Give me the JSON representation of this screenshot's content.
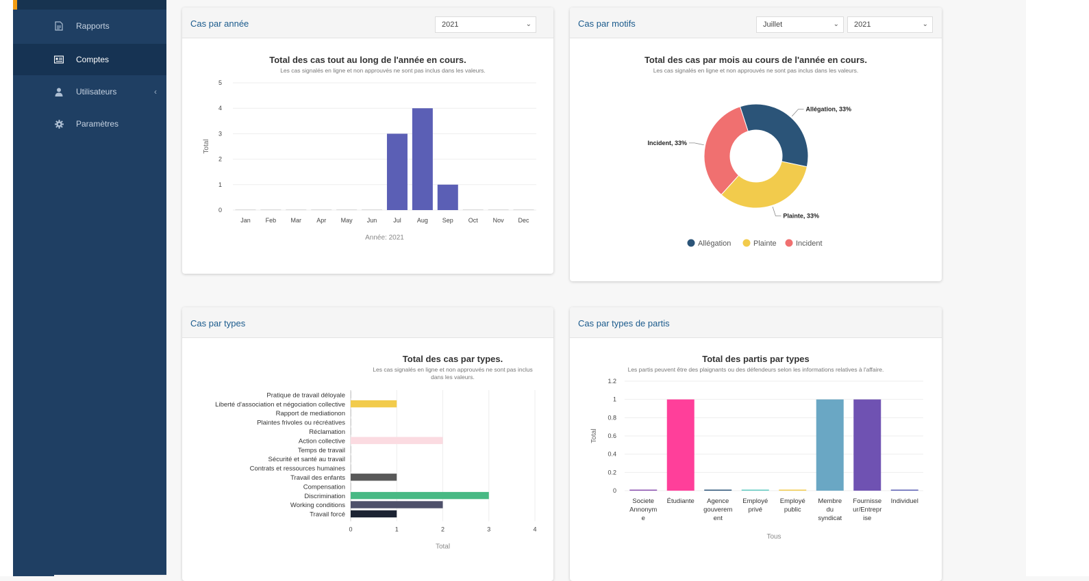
{
  "sidebar": {
    "items": [
      {
        "label": "Rapports",
        "icon": "file-icon"
      },
      {
        "label": "Comptes",
        "icon": "id-card-icon"
      },
      {
        "label": "Utilisateurs",
        "icon": "user-icon"
      },
      {
        "label": "Paramètres",
        "icon": "gear-icon"
      }
    ],
    "accent_color": "#f39c12"
  },
  "panels": {
    "annee": {
      "title": "Cas par année",
      "year_select": "2021",
      "chart_title": "Total des cas tout au long de l'année en cours.",
      "chart_subtitle": "Les cas signalés en ligne et non approuvés ne sont pas inclus dans les valeurs."
    },
    "motifs": {
      "title": "Cas par motifs",
      "month_select": "Juillet",
      "year_select": "2021",
      "chart_title": "Total des cas par mois au cours de l'année en cours.",
      "chart_subtitle": "Les cas signalés en ligne et non approuvés ne sont pas inclus dans les valeurs."
    },
    "types": {
      "title": "Cas par types",
      "chart_title": "Total des cas par types.",
      "chart_subtitle_1": "Les cas signalés en ligne et non approuvés ne sont pas inclus",
      "chart_subtitle_2": "dans les valeurs."
    },
    "partis": {
      "title": "Cas par types de partis",
      "chart_title": "Total des partis par types",
      "chart_subtitle": "Les partis peuvent être des plaignants ou des défendeurs selon les informations relatives à l'affaire."
    }
  },
  "chart_data": [
    {
      "type": "bar",
      "categories": [
        "Jan",
        "Feb",
        "Mar",
        "Apr",
        "May",
        "Jun",
        "Jul",
        "Aug",
        "Sep",
        "Oct",
        "Nov",
        "Dec"
      ],
      "values": [
        0,
        0,
        0,
        0,
        0,
        0,
        3,
        4,
        1,
        0,
        0,
        0
      ],
      "xlabel": "Année: 2021",
      "ylabel": "Total",
      "ylim": [
        0,
        5
      ],
      "yticks": [
        0,
        1,
        2,
        3,
        4,
        5
      ],
      "color": "#5b5fb5"
    },
    {
      "type": "pie",
      "labels": [
        "Allégation",
        "Plainte",
        "Incident"
      ],
      "values": [
        33,
        33,
        33
      ],
      "data_labels": [
        "Allégation, 33%",
        "Plainte, 33%",
        "Incident, 33%"
      ],
      "colors": [
        "#2b5478",
        "#f2cb4c",
        "#f07070"
      ],
      "legend": "bottom"
    },
    {
      "type": "bar",
      "orientation": "horizontal",
      "categories": [
        "Pratique de travail déloyale",
        "Liberté d'association et négociation collective",
        "Rapport de mediationon",
        "Plaintes frivoles ou récréatives",
        "Réclamation",
        "Action collective",
        "Temps de travail",
        "Sécurité et santé au travail",
        "Contrats et ressources humaines",
        "Travail des enfants",
        "Compensation",
        "Discrimination",
        "Working conditions",
        "Travail forcé"
      ],
      "values": [
        0,
        1,
        0,
        0,
        0,
        2,
        0,
        0,
        0,
        1,
        0,
        3,
        2,
        1
      ],
      "colors": [
        "#cccccc",
        "#f2cb4c",
        "#cccccc",
        "#cccccc",
        "#cccccc",
        "#fbdbe1",
        "#cccccc",
        "#cccccc",
        "#cccccc",
        "#595959",
        "#cccccc",
        "#48b984",
        "#4e506a",
        "#1c2333"
      ],
      "xlabel": "Total",
      "xlim": [
        0,
        4
      ],
      "xticks": [
        0,
        1,
        2,
        3,
        4
      ]
    },
    {
      "type": "bar",
      "categories": [
        "Societe Annonym e",
        "Étudiante",
        "Agence gouverem ent",
        "Employé privé",
        "Employé public",
        "Membre du syndicat",
        "Fournisse ur/Entrepr ise",
        "Individuel"
      ],
      "category_lines": [
        [
          "Societe",
          "Annonym",
          "e"
        ],
        [
          "Étudiante"
        ],
        [
          "Agence",
          "gouverem",
          "ent"
        ],
        [
          "Employé",
          "privé"
        ],
        [
          "Employé",
          "public"
        ],
        [
          "Membre",
          "du",
          "syndicat"
        ],
        [
          "Fournisse",
          "ur/Entrepr",
          "ise"
        ],
        [
          "Individuel"
        ]
      ],
      "values": [
        0,
        1,
        0,
        0,
        0,
        1,
        1,
        0
      ],
      "colors": [
        "#8a4fb0",
        "#ff3f9a",
        "#2b5478",
        "#5ec9c0",
        "#f2cb4c",
        "#6aa7c4",
        "#6f52b2",
        "#5b5fb5"
      ],
      "xlabel": "Tous",
      "ylabel": "Total",
      "ylim": [
        0,
        1.2
      ],
      "yticks": [
        "0",
        "0.2",
        "0.4",
        "0.6",
        "0.8",
        "1",
        "1.2"
      ]
    }
  ]
}
